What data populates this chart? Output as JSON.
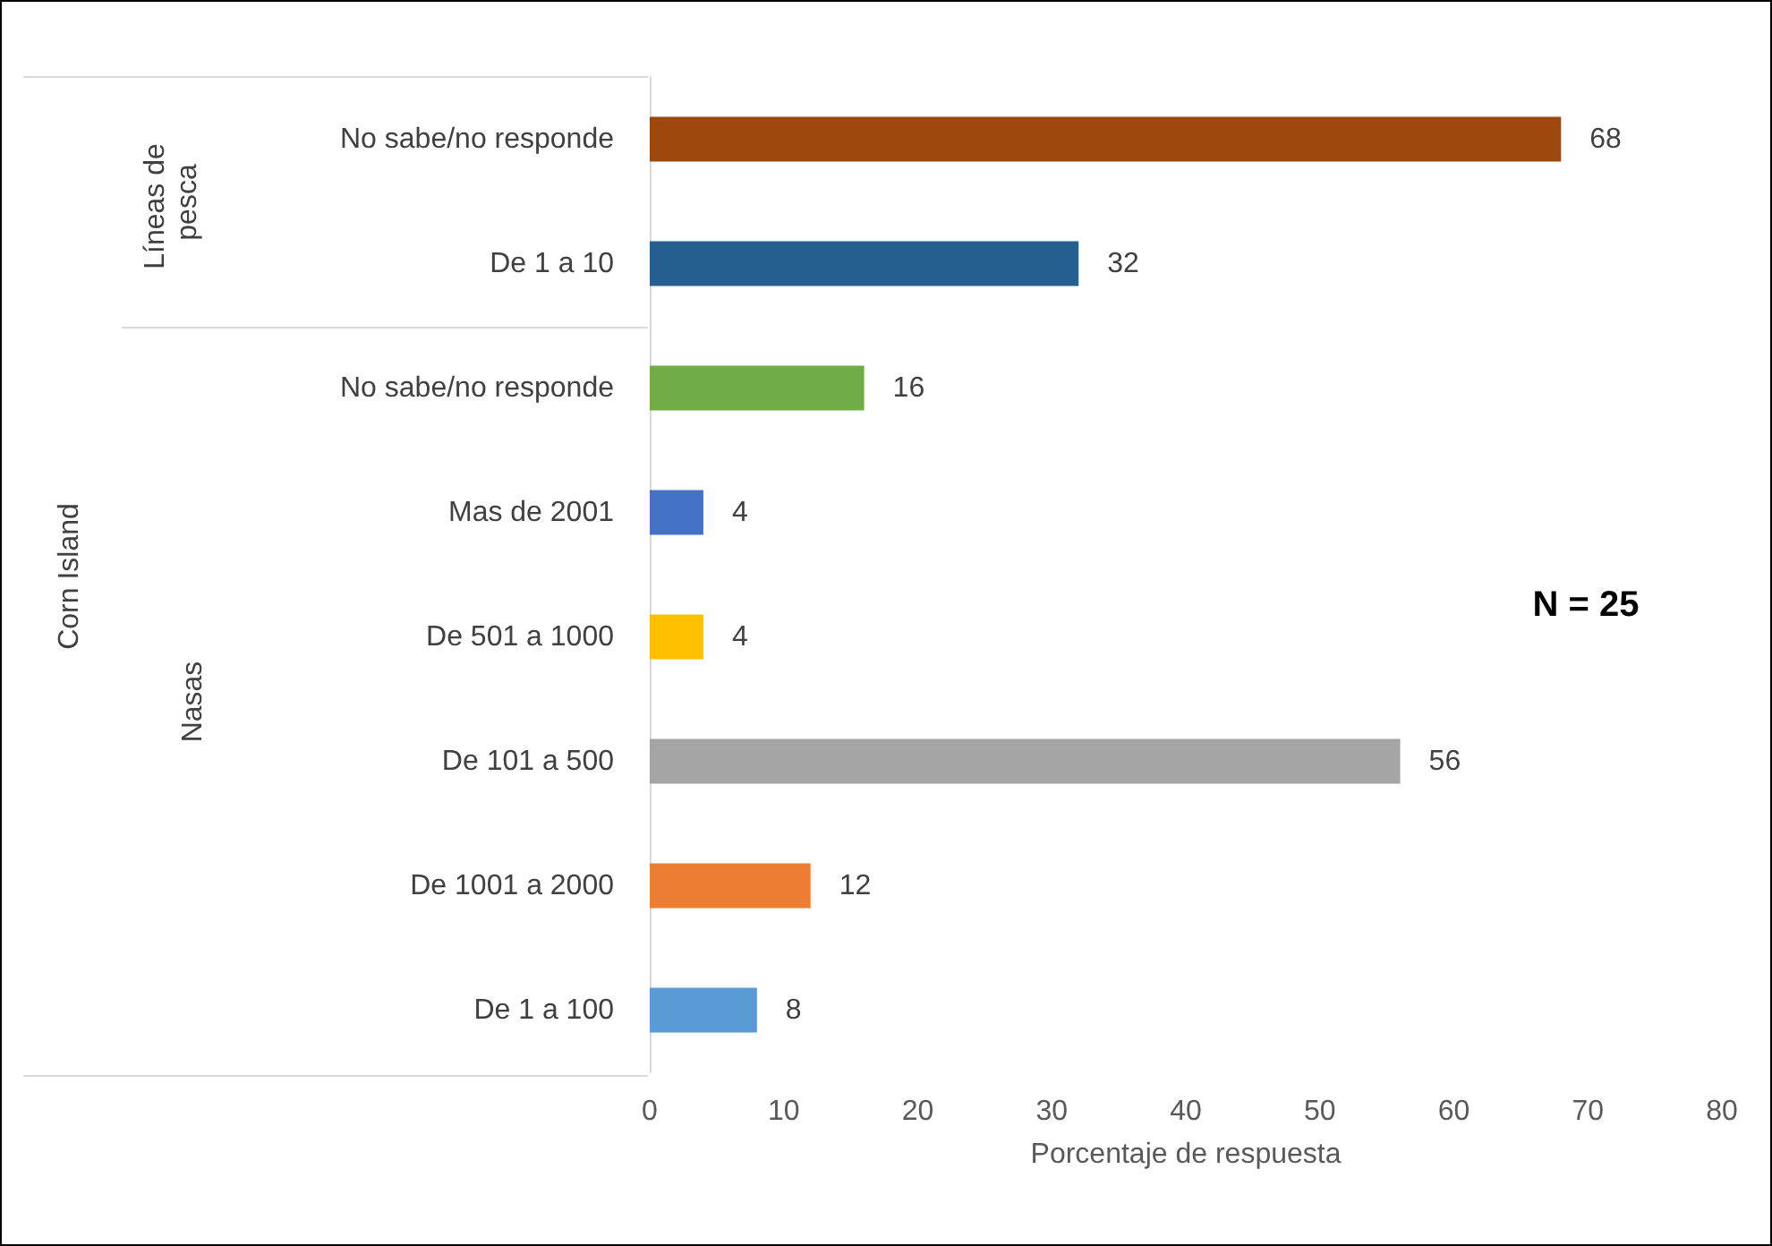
{
  "chart_data": {
    "type": "bar",
    "orientation": "horizontal",
    "xlabel": "Porcentaje de respuesta",
    "categories": [
      "No sabe/no responde",
      "De 1 a 10",
      "No sabe/no responde",
      "Mas de 2001",
      "De 501 a 1000",
      "De 101 a 500",
      "De 1001 a 2000",
      "De 1 a 100"
    ],
    "values": [
      68,
      32,
      16,
      4,
      4,
      56,
      12,
      8
    ],
    "colors": [
      "#9e480e",
      "#255e91",
      "#70ad47",
      "#4472c4",
      "#ffc000",
      "#a5a5a5",
      "#ed7d31",
      "#5b9bd5"
    ],
    "xlim": [
      0,
      80
    ],
    "xticks": [
      0,
      10,
      20,
      30,
      40,
      50,
      60,
      70,
      80
    ],
    "data_labels": true,
    "grid": false,
    "annotations": [
      "Líneas de pesca",
      "Nasas",
      "Corn Island",
      "N = 25"
    ]
  }
}
